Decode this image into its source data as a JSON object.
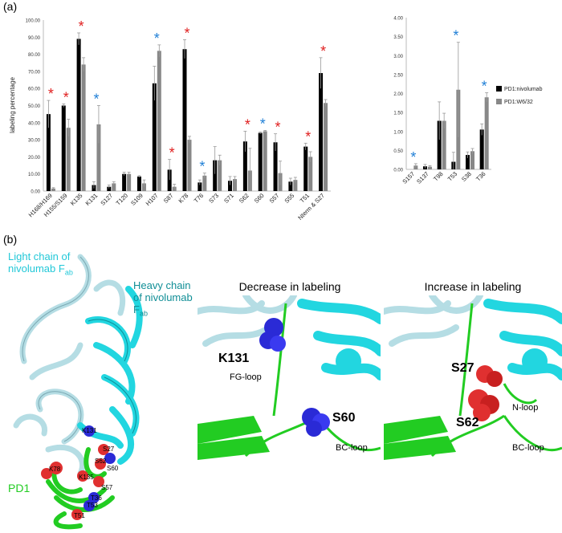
{
  "panel_a": {
    "label": "(a)"
  },
  "panel_b": {
    "label": "(b)",
    "light_chain_label": "Light chain of nivolumab F",
    "light_chain_sub": "ab",
    "heavy_chain_label": "Heavy chain of nivolumab F",
    "heavy_chain_sub": "ab",
    "pd1_label": "PD1",
    "decrease": {
      "title": "Decrease in labeling",
      "res1": "K131",
      "res2": "S60",
      "loop1": "FG-loop",
      "loop2": "BC-loop"
    },
    "increase": {
      "title": "Increase in labeling",
      "res1": "S27",
      "res2": "S62",
      "loop1": "N-loop",
      "loop2": "BC-loop"
    },
    "overview_residues": [
      "S27",
      "K131",
      "S62",
      "S60",
      "K78",
      "K135",
      "S57",
      "T53",
      "T51",
      "T36"
    ]
  },
  "colors": {
    "nivolumab": "#000000",
    "w632": "#888888",
    "decrease_star": "#1f7fd6",
    "increase_star": "#e02020",
    "pd1": "#22cc22",
    "heavy": "#22d6e0",
    "light": "#b5dde4",
    "dec_sphere": "#2a2ad6",
    "inc_sphere": "#e03030"
  },
  "chart_data": [
    {
      "type": "bar",
      "ylabel": "labeling percentage",
      "ylim": [
        0,
        100
      ],
      "yticks": [
        "0.00",
        "10.00",
        "20.00",
        "30.00",
        "40.00",
        "50.00",
        "60.00",
        "70.00",
        "80.00",
        "90.00",
        "100.00"
      ],
      "categories": [
        "H168/H169",
        "H155/S159",
        "K135",
        "K131",
        "S127",
        "T120",
        "S109",
        "H107",
        "S87",
        "K78",
        "T76",
        "S73",
        "S71",
        "S62",
        "S60",
        "S57",
        "S55",
        "T51",
        "Nterm & S27"
      ],
      "series": [
        {
          "name": "PD1:nivolumab",
          "values": [
            45,
            50,
            89,
            3.5,
            2.5,
            10,
            8.5,
            63,
            12.5,
            83,
            5,
            18,
            6,
            29,
            34,
            28.5,
            5.5,
            26,
            69
          ],
          "errors": [
            8,
            1,
            3.5,
            2,
            1,
            1,
            0.5,
            10,
            6,
            5.5,
            1.5,
            8,
            2.5,
            6,
            0.5,
            5,
            2,
            2,
            9
          ]
        },
        {
          "name": "PD1:W6/32",
          "values": [
            1.5,
            37,
            74,
            39,
            4.5,
            10,
            4.5,
            82,
            2.5,
            30,
            9,
            18,
            7,
            12,
            35,
            10.5,
            6.5,
            20,
            51.5
          ],
          "errors": [
            0.5,
            5,
            4,
            11,
            1,
            1,
            2,
            3.5,
            1.5,
            2,
            1.5,
            3,
            1.5,
            13,
            0.5,
            7,
            1.5,
            3,
            2
          ]
        }
      ],
      "stars": [
        "increase",
        "increase",
        "increase",
        "decrease",
        null,
        null,
        null,
        "decrease",
        "increase",
        "increase",
        "decrease",
        null,
        null,
        "increase",
        "decrease",
        "increase",
        null,
        "increase",
        "increase"
      ]
    },
    {
      "type": "bar",
      "ylim": [
        0,
        4
      ],
      "yticks": [
        "0.00",
        "0.50",
        "1.00",
        "1.50",
        "2.00",
        "2.50",
        "3.00",
        "3.50",
        "4.00"
      ],
      "categories": [
        "S157",
        "S137",
        "T98",
        "T53",
        "S38",
        "T36"
      ],
      "series": [
        {
          "name": "PD1:nivolumab",
          "values": [
            0,
            0.08,
            1.28,
            0.2,
            0.38,
            1.05
          ],
          "errors": [
            0,
            0.05,
            0.5,
            0.25,
            0.08,
            0.15
          ]
        },
        {
          "name": "PD1:W6/32",
          "values": [
            0.1,
            0.07,
            1.28,
            2.1,
            0.48,
            1.9
          ],
          "errors": [
            0.05,
            0.03,
            0.2,
            1.25,
            0.07,
            0.12
          ]
        }
      ],
      "stars": [
        "decrease",
        null,
        null,
        "decrease",
        null,
        "decrease"
      ],
      "legend": [
        "PD1:nivolumab",
        "PD1:W6/32"
      ]
    }
  ]
}
